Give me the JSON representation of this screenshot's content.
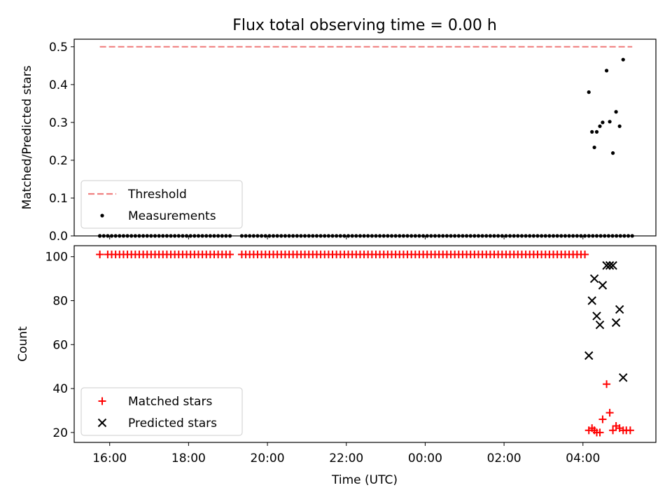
{
  "title": "Flux total observing time = 0.00 h",
  "xlabel": "Time (UTC)",
  "chart_data": [
    {
      "type": "scatter",
      "ylabel": "Matched/Predicted stars",
      "xlim_hours": [
        15.1,
        29.85
      ],
      "ylim": [
        0,
        0.52
      ],
      "yticks": [
        0.0,
        0.1,
        0.2,
        0.3,
        0.4,
        0.5
      ],
      "legend": "lower-left",
      "threshold": {
        "name": "Threshold",
        "value": 0.5,
        "x_range_hours": [
          15.75,
          29.25
        ],
        "color": "#f08080"
      },
      "series": [
        {
          "name": "Measurements",
          "marker": "dot",
          "color": "#000000",
          "zero_runs_hours": [
            [
              15.75,
              15.75
            ],
            [
              15.75,
              19.05
            ],
            [
              19.35,
              24.35
            ],
            [
              24.45,
              27.35
            ],
            [
              27.45,
              29.05
            ],
            [
              29.15,
              29.25
            ]
          ],
          "points": [
            {
              "x": 28.15,
              "y": 0.38
            },
            {
              "x": 28.23,
              "y": 0.275
            },
            {
              "x": 28.29,
              "y": 0.234
            },
            {
              "x": 28.35,
              "y": 0.275
            },
            {
              "x": 28.43,
              "y": 0.29
            },
            {
              "x": 28.5,
              "y": 0.3
            },
            {
              "x": 28.6,
              "y": 0.437
            },
            {
              "x": 28.68,
              "y": 0.302
            },
            {
              "x": 28.76,
              "y": 0.219
            },
            {
              "x": 28.84,
              "y": 0.328
            },
            {
              "x": 28.93,
              "y": 0.29
            },
            {
              "x": 29.02,
              "y": 0.466
            }
          ]
        }
      ]
    },
    {
      "type": "scatter",
      "ylabel": "Count",
      "xlim_hours": [
        15.1,
        29.85
      ],
      "ylim": [
        15.5,
        105
      ],
      "yticks": [
        20,
        40,
        60,
        80,
        100
      ],
      "xticks": [
        "16:00",
        "18:00",
        "20:00",
        "22:00",
        "00:00",
        "02:00",
        "04:00"
      ],
      "legend": "lower-left",
      "series": [
        {
          "name": "Matched stars",
          "marker": "plus",
          "color": "#ff0000",
          "constant_value": 101,
          "constant_runs_hours": [
            [
              15.75,
              15.75
            ],
            [
              15.95,
              19.05
            ],
            [
              19.35,
              24.35
            ],
            [
              24.45,
              28.05
            ]
          ],
          "points": [
            {
              "x": 28.15,
              "y": 21
            },
            {
              "x": 28.23,
              "y": 22
            },
            {
              "x": 28.29,
              "y": 21
            },
            {
              "x": 28.35,
              "y": 20
            },
            {
              "x": 28.43,
              "y": 20
            },
            {
              "x": 28.5,
              "y": 26
            },
            {
              "x": 28.6,
              "y": 42
            },
            {
              "x": 28.68,
              "y": 29
            },
            {
              "x": 28.76,
              "y": 21
            },
            {
              "x": 28.84,
              "y": 23
            },
            {
              "x": 28.93,
              "y": 22
            },
            {
              "x": 29.02,
              "y": 21
            },
            {
              "x": 29.1,
              "y": 21
            },
            {
              "x": 29.2,
              "y": 21
            }
          ]
        },
        {
          "name": "Predicted stars",
          "marker": "x",
          "color": "#000000",
          "points": [
            {
              "x": 28.15,
              "y": 55
            },
            {
              "x": 28.23,
              "y": 80
            },
            {
              "x": 28.29,
              "y": 90
            },
            {
              "x": 28.35,
              "y": 73
            },
            {
              "x": 28.43,
              "y": 69
            },
            {
              "x": 28.5,
              "y": 87
            },
            {
              "x": 28.6,
              "y": 96
            },
            {
              "x": 28.68,
              "y": 96
            },
            {
              "x": 28.76,
              "y": 96
            },
            {
              "x": 28.84,
              "y": 70
            },
            {
              "x": 28.93,
              "y": 76
            },
            {
              "x": 29.02,
              "y": 45
            }
          ]
        }
      ]
    }
  ]
}
